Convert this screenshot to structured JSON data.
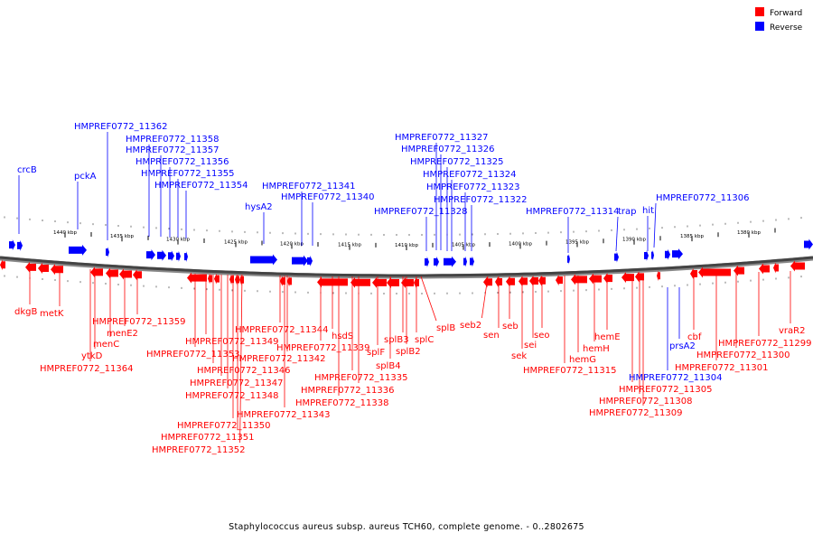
{
  "legend": {
    "forward": {
      "label": "Forward",
      "color": "#ff0000"
    },
    "reverse": {
      "label": "Reverse",
      "color": "#0000ff"
    }
  },
  "caption": "Staphylococcus aureus subsp. aureus TCH60, complete genome. - 0..2802675",
  "scale_labels": [
    "1440 kbp",
    "1435 kbp",
    "1430 kbp",
    "1425 kbp",
    "1420 kbp",
    "1415 kbp",
    "1410 kbp",
    "1405 kbp",
    "1400 kbp",
    "1395 kbp",
    "1390 kbp",
    "1385 kbp",
    "1380 kbp"
  ],
  "reverse_labels": [
    "crcB",
    "pckA",
    "HMPREF0772_11362",
    "HMPREF0772_11358",
    "HMPREF0772_11357",
    "HMPREF0772_11356",
    "HMPREF0772_11355",
    "HMPREF0772_11354",
    "hysA2",
    "HMPREF0772_11341",
    "HMPREF0772_11340",
    "HMPREF0772_11327",
    "HMPREF0772_11326",
    "HMPREF0772_11325",
    "HMPREF0772_11324",
    "HMPREF0772_11323",
    "HMPREF0772_11322",
    "HMPREF0772_11328",
    "HMPREF0772_11314",
    "trap",
    "hit",
    "HMPREF0772_11306",
    "prsA2",
    "HMPREF0772_11304"
  ],
  "forward_labels": [
    "dkgB",
    "metK",
    "ytkD",
    "HMPREF0772_11364",
    "menC",
    "menE2",
    "HMPREF0772_11359",
    "HMPREF0772_11353",
    "HMPREF0772_11349",
    "HMPREF0772_11346",
    "HMPREF0772_11347",
    "HMPREF0772_11348",
    "HMPREF0772_11350",
    "HMPREF0772_11351",
    "HMPREF0772_11352",
    "HMPREF0772_11344",
    "HMPREF0772_11342",
    "HMPREF0772_11343",
    "HMPREF0772_11339",
    "hsdS",
    "HMPREF0772_11335",
    "HMPREF0772_11336",
    "HMPREF0772_11338",
    "splF",
    "splB4",
    "splB3",
    "splB2",
    "splC",
    "splB",
    "seb2",
    "sen",
    "seb",
    "sek",
    "sei",
    "seo",
    "HMPREF0772_11315",
    "hemG",
    "hemH",
    "hemE",
    "HMPREF0772_11305",
    "HMPREF0772_11308",
    "HMPREF0772_11309",
    "cbf",
    "HMPREF0772_11301",
    "HMPREF0772_11300",
    "HMPREF0772_11299",
    "vraR2"
  ]
}
